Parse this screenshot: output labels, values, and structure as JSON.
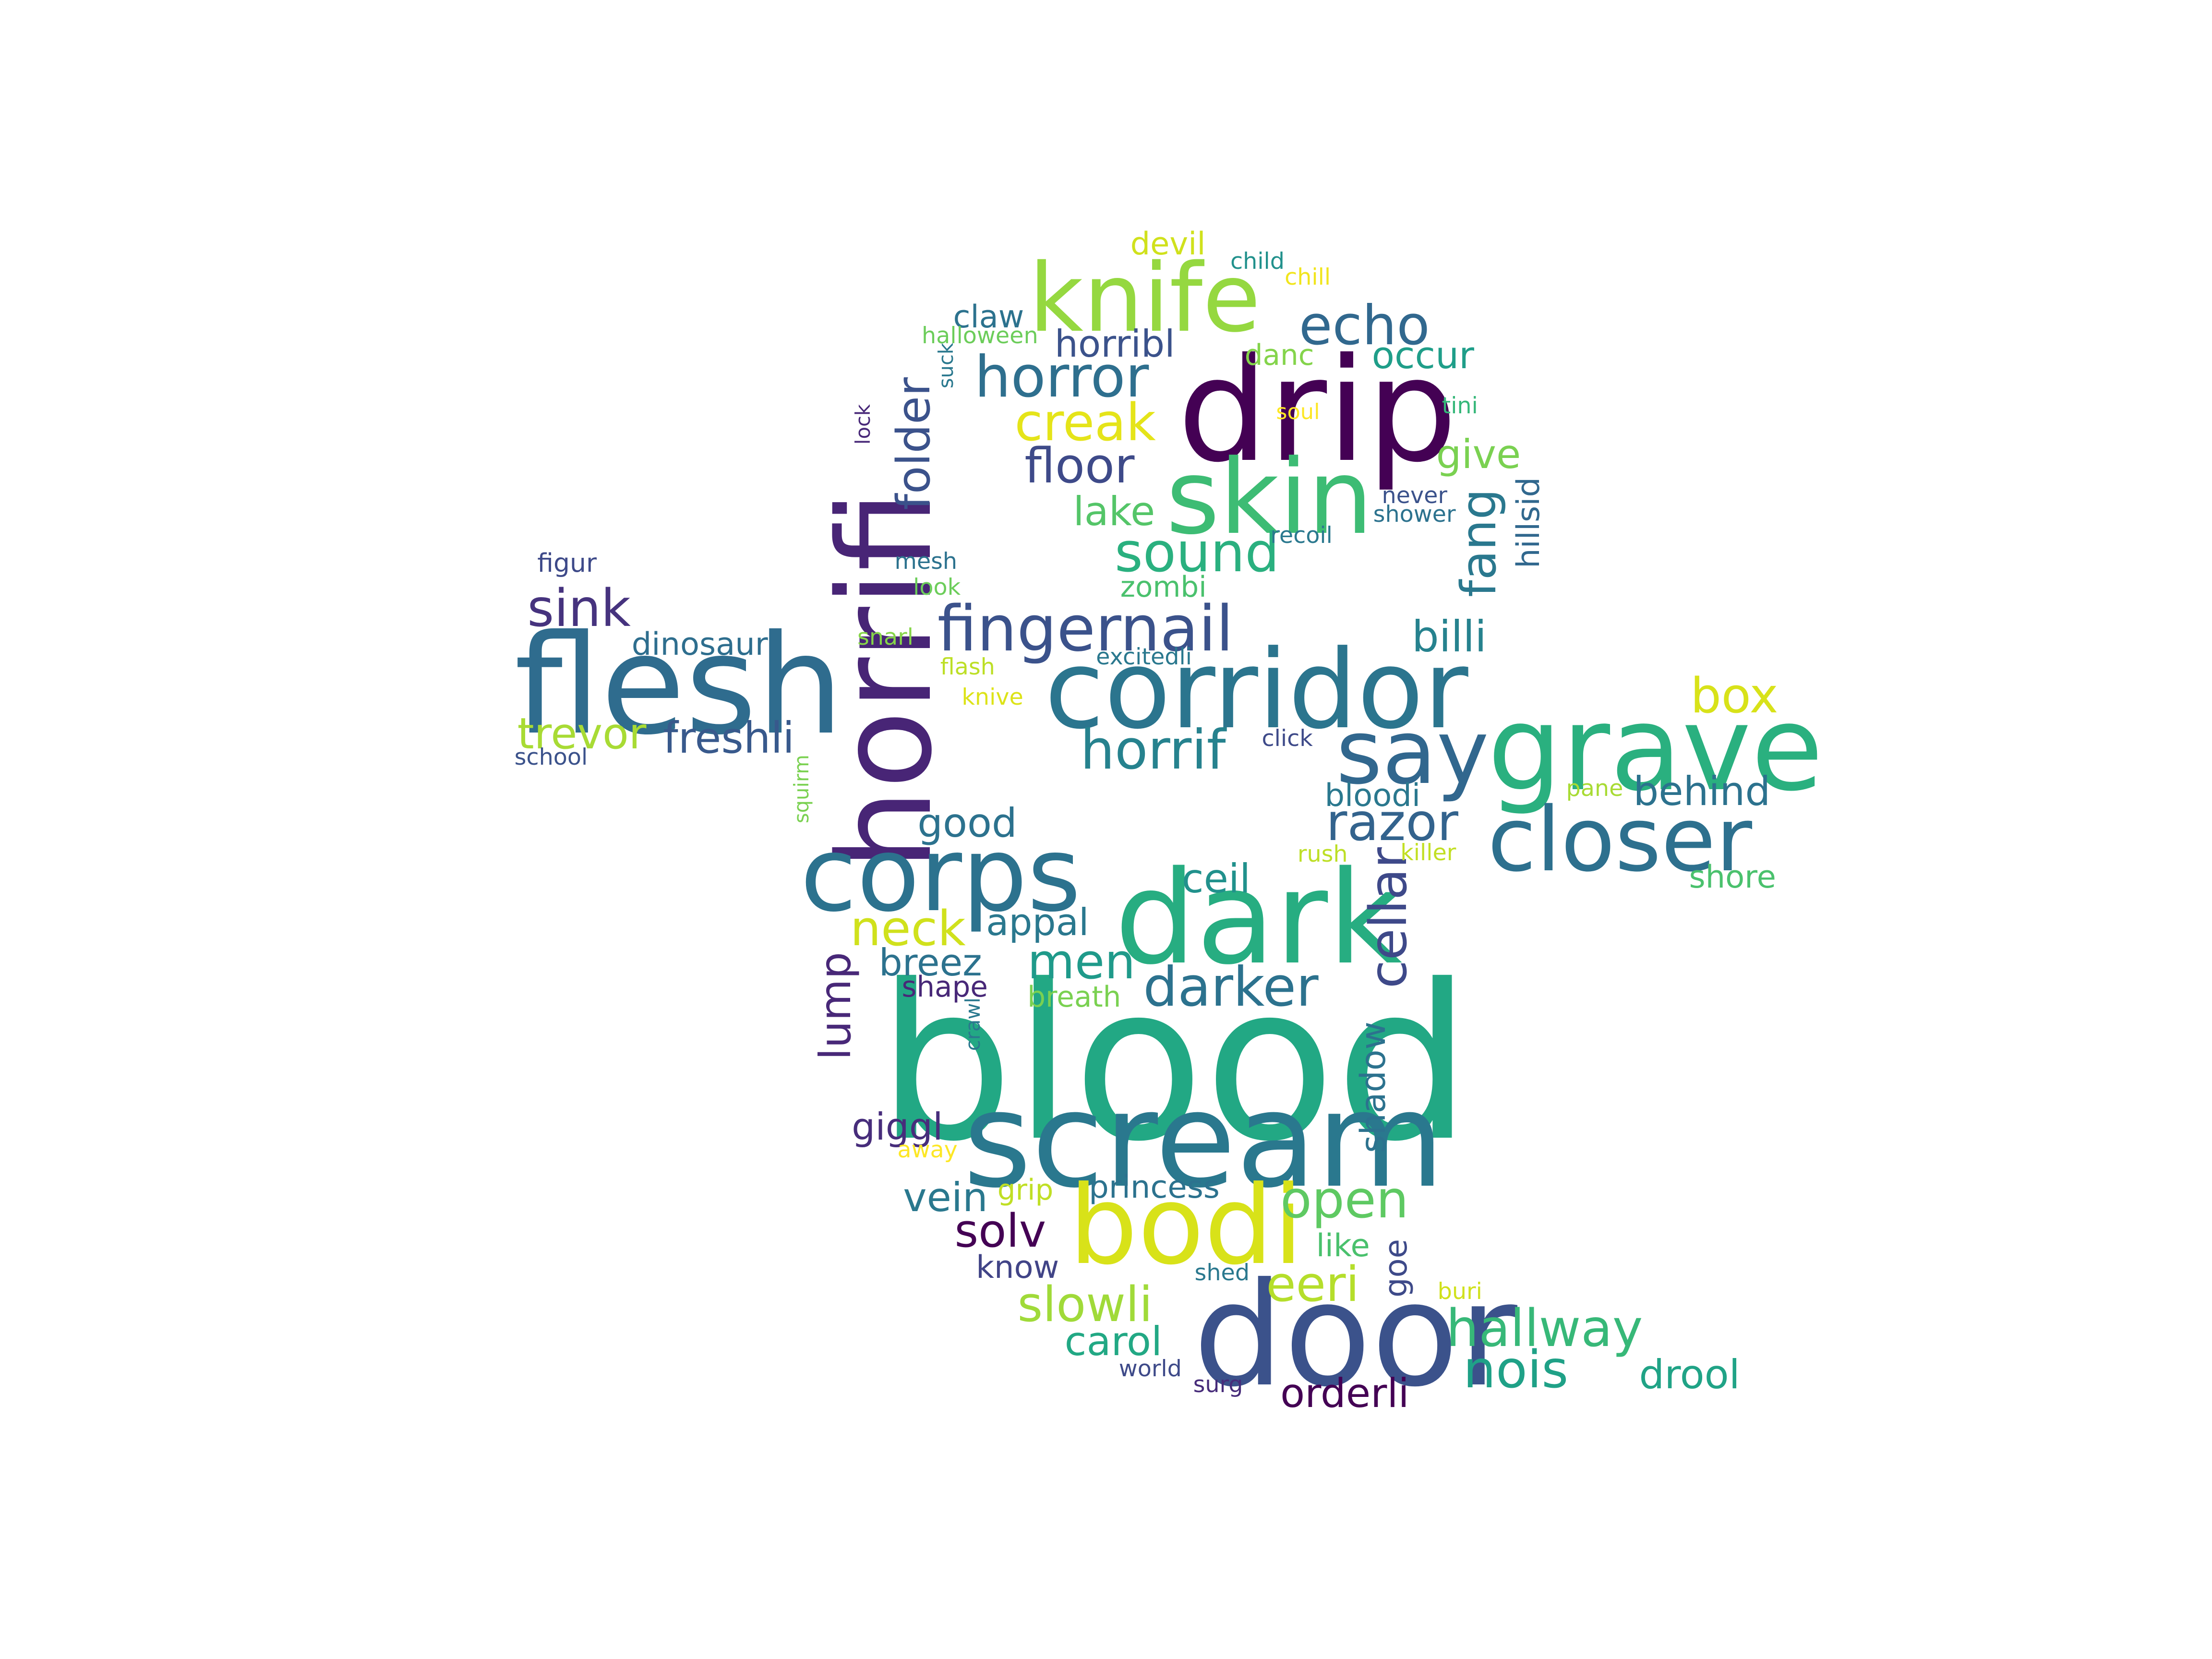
{
  "wordcloud": {
    "words": [
      {
        "text": "blood",
        "color": "#22a884"
      },
      {
        "text": "scream",
        "color": "#2a788e"
      },
      {
        "text": "door",
        "color": "#3b528b"
      },
      {
        "text": "drip",
        "color": "#440154"
      },
      {
        "text": "flesh",
        "color": "#2f6c8e"
      },
      {
        "text": "corridor",
        "color": "#2b758e"
      },
      {
        "text": "dark",
        "color": "#27ad81"
      },
      {
        "text": "horrifi",
        "color": "#482576"
      },
      {
        "text": "grave",
        "color": "#2ab07f"
      },
      {
        "text": "bodi",
        "color": "#d8e219"
      },
      {
        "text": "corps",
        "color": "#2c728e"
      },
      {
        "text": "skin",
        "color": "#3dbc74"
      },
      {
        "text": "closer",
        "color": "#2d708e"
      },
      {
        "text": "knife",
        "color": "#95d840"
      },
      {
        "text": "say",
        "color": "#31678e"
      },
      {
        "text": "fingernail",
        "color": "#3b528b"
      },
      {
        "text": "horror",
        "color": "#2e6f8e"
      },
      {
        "text": "cellar",
        "color": "#3e4989"
      },
      {
        "text": "darker",
        "color": "#2c728e"
      },
      {
        "text": "sound",
        "color": "#2ab07f"
      },
      {
        "text": "horrif",
        "color": "#26828e"
      },
      {
        "text": "razor",
        "color": "#33638d"
      },
      {
        "text": "echo",
        "color": "#31688e"
      },
      {
        "text": "hallway",
        "color": "#37b878"
      },
      {
        "text": "open",
        "color": "#5ec962"
      },
      {
        "text": "creak",
        "color": "#e5e419"
      },
      {
        "text": "floor",
        "color": "#3e4a89"
      },
      {
        "text": "sink",
        "color": "#46337e"
      },
      {
        "text": "folder",
        "color": "#3b528b"
      },
      {
        "text": "nois",
        "color": "#1fa187"
      },
      {
        "text": "slowli",
        "color": "#a0da39"
      },
      {
        "text": "neck",
        "color": "#d0e11c"
      },
      {
        "text": "men",
        "color": "#1f9a8a"
      },
      {
        "text": "eeri",
        "color": "#b5de2b"
      },
      {
        "text": "fang",
        "color": "#2a788e"
      },
      {
        "text": "box",
        "color": "#d8e219"
      },
      {
        "text": "billi",
        "color": "#26828e"
      },
      {
        "text": "freshli",
        "color": "#38598c"
      },
      {
        "text": "trevor",
        "color": "#a8db34"
      },
      {
        "text": "lump",
        "color": "#482878"
      },
      {
        "text": "solv",
        "color": "#440154"
      },
      {
        "text": "behind",
        "color": "#2c728e"
      },
      {
        "text": "drool",
        "color": "#20a386"
      },
      {
        "text": "orderli",
        "color": "#440154"
      },
      {
        "text": "carol",
        "color": "#22a884"
      },
      {
        "text": "vein",
        "color": "#2a788e"
      },
      {
        "text": "shadow",
        "color": "#2c728e"
      },
      {
        "text": "ceil",
        "color": "#21918c"
      },
      {
        "text": "lake",
        "color": "#54c568"
      },
      {
        "text": "good",
        "color": "#2c728e"
      },
      {
        "text": "hillsid",
        "color": "#31688e"
      },
      {
        "text": "give",
        "color": "#7ad151"
      },
      {
        "text": "horribl",
        "color": "#3b528b"
      },
      {
        "text": "occur",
        "color": "#1f9e89"
      },
      {
        "text": "appal",
        "color": "#2a788e"
      },
      {
        "text": "breez",
        "color": "#2c728e"
      },
      {
        "text": "giggl",
        "color": "#472d7b"
      },
      {
        "text": "dinosaur",
        "color": "#2e6e8e"
      },
      {
        "text": "shore",
        "color": "#4ac16d"
      },
      {
        "text": "goe",
        "color": "#3e4a89"
      },
      {
        "text": "claw",
        "color": "#2c728e"
      },
      {
        "text": "zombi",
        "color": "#4ac16d"
      },
      {
        "text": "princess",
        "color": "#2c728e"
      },
      {
        "text": "like",
        "color": "#4ac16d"
      },
      {
        "text": "know",
        "color": "#414487"
      },
      {
        "text": "bloodi",
        "color": "#2a788e"
      },
      {
        "text": "danc",
        "color": "#84d44b"
      },
      {
        "text": "grip",
        "color": "#c0df25"
      },
      {
        "text": "shape",
        "color": "#482878"
      },
      {
        "text": "breath",
        "color": "#7ad151"
      },
      {
        "text": "devil",
        "color": "#d0e11c"
      },
      {
        "text": "halloween",
        "color": "#6ccd5a"
      },
      {
        "text": "figur",
        "color": "#3e4a89"
      },
      {
        "text": "mesh",
        "color": "#2c728e"
      },
      {
        "text": "rush",
        "color": "#bddf26"
      },
      {
        "text": "killer",
        "color": "#c2df23"
      },
      {
        "text": "recoil",
        "color": "#2a788e"
      },
      {
        "text": "never",
        "color": "#3b528b"
      },
      {
        "text": "shower",
        "color": "#2c728e"
      },
      {
        "text": "school",
        "color": "#3b528b"
      },
      {
        "text": "world",
        "color": "#3e4a89"
      },
      {
        "text": "surg",
        "color": "#472c7a"
      },
      {
        "text": "shed",
        "color": "#2a788e"
      },
      {
        "text": "child",
        "color": "#21918c"
      },
      {
        "text": "chill",
        "color": "#f1e51d"
      },
      {
        "text": "soul",
        "color": "#fde725"
      },
      {
        "text": "tini",
        "color": "#35b779"
      },
      {
        "text": "look",
        "color": "#6ccd5a"
      },
      {
        "text": "snarl",
        "color": "#86d549"
      },
      {
        "text": "flash",
        "color": "#bddf26"
      },
      {
        "text": "knive",
        "color": "#dde318"
      },
      {
        "text": "excitedli",
        "color": "#2a788e"
      },
      {
        "text": "click",
        "color": "#3e4a89"
      },
      {
        "text": "pane",
        "color": "#a8db34"
      },
      {
        "text": "away",
        "color": "#fde725"
      },
      {
        "text": "buri",
        "color": "#d0e11c"
      },
      {
        "text": "crawl",
        "color": "#2a788e"
      },
      {
        "text": "squirm",
        "color": "#7ad151"
      },
      {
        "text": "suck",
        "color": "#2a788e"
      },
      {
        "text": "lock",
        "color": "#482878"
      }
    ]
  }
}
